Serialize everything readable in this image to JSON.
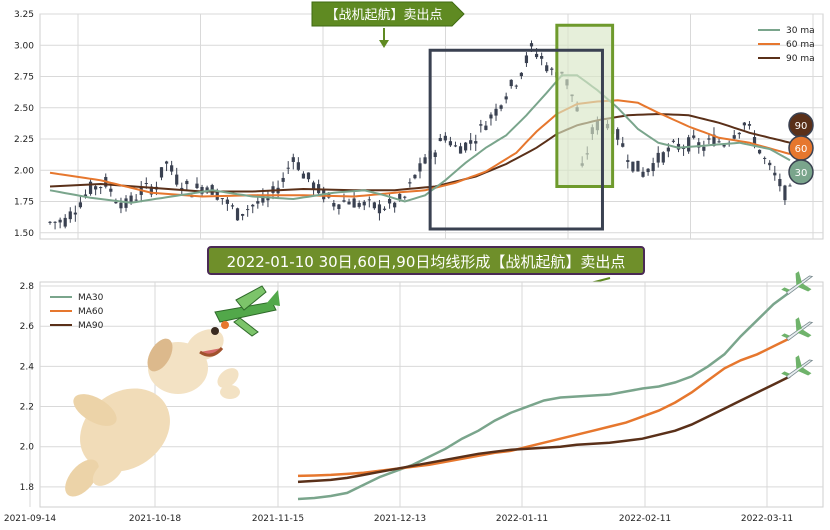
{
  "colors": {
    "ma30": "#7aa58c",
    "ma60": "#e6772e",
    "ma90": "#5a3019",
    "candle": "#3a4151",
    "box_dark": "#3a4151",
    "box_green_fill": "#d8e6c6",
    "box_green_stroke": "#6e9a2c",
    "banner_green": "#5f8a22",
    "banner_dark": "#4a2a55",
    "banner_purple_fill": "#6f8f2a",
    "grid": "#d9d9d9"
  },
  "top_banner": {
    "label": "【战机起航】卖出点"
  },
  "bottom_banner": {
    "label": "2022-01-10 30日,60日,90日均线形成【战机起航】卖出点"
  },
  "badges": {
    "b90": "90",
    "b60": "60",
    "b30": "30"
  },
  "icons": [
    "airplane-icon",
    "dog-icon"
  ],
  "chart_data": [
    {
      "type": "candlestick",
      "title": "",
      "ylim": [
        1.45,
        3.25
      ],
      "yticks": [
        "3.25",
        "3.00",
        "2.75",
        "2.50",
        "2.25",
        "2.00",
        "1.75",
        "1.50"
      ],
      "ytick_values": [
        3.25,
        3.0,
        2.75,
        2.5,
        2.25,
        2.0,
        1.75,
        1.5
      ],
      "legend": {
        "placement": "top-right",
        "entries": [
          "30 ma",
          "60 ma",
          "90 ma"
        ]
      },
      "grid": true,
      "n_days": 126,
      "close_anchors": [
        [
          0,
          1.58
        ],
        [
          3,
          1.6
        ],
        [
          5,
          1.7
        ],
        [
          8,
          1.85
        ],
        [
          11,
          1.9
        ],
        [
          13,
          1.78
        ],
        [
          15,
          1.72
        ],
        [
          18,
          1.83
        ],
        [
          21,
          1.88
        ],
        [
          23,
          2.06
        ],
        [
          25,
          1.93
        ],
        [
          28,
          1.84
        ],
        [
          31,
          1.88
        ],
        [
          34,
          1.78
        ],
        [
          37,
          1.65
        ],
        [
          40,
          1.72
        ],
        [
          43,
          1.76
        ],
        [
          46,
          1.92
        ],
        [
          48,
          2.12
        ],
        [
          50,
          1.97
        ],
        [
          53,
          1.84
        ],
        [
          56,
          1.74
        ],
        [
          59,
          1.76
        ],
        [
          62,
          1.72
        ],
        [
          65,
          1.7
        ],
        [
          68,
          1.73
        ],
        [
          70,
          1.78
        ],
        [
          72,
          1.95
        ],
        [
          74,
          2.06
        ],
        [
          76,
          2.16
        ],
        [
          78,
          2.28
        ],
        [
          80,
          2.18
        ],
        [
          83,
          2.22
        ],
        [
          86,
          2.38
        ],
        [
          88,
          2.48
        ],
        [
          90,
          2.62
        ],
        [
          92,
          2.72
        ],
        [
          94,
          2.88
        ],
        [
          95,
          2.97
        ],
        [
          97,
          2.9
        ],
        [
          99,
          2.78
        ],
        [
          101,
          2.8
        ],
        [
          103,
          2.6
        ],
        [
          104,
          2.48
        ],
        [
          105,
          2.0
        ],
        [
          107,
          2.3
        ],
        [
          109,
          2.42
        ],
        [
          111,
          2.35
        ],
        [
          113,
          2.2
        ],
        [
          115,
          2.05
        ],
        [
          117,
          1.98
        ],
        [
          119,
          2.05
        ],
        [
          121,
          2.12
        ],
        [
          123,
          2.18
        ],
        [
          125,
          2.2
        ],
        [
          127,
          2.22
        ],
        [
          129,
          2.18
        ],
        [
          131,
          2.25
        ],
        [
          133,
          2.22
        ],
        [
          135,
          2.3
        ],
        [
          137,
          2.38
        ],
        [
          139,
          2.25
        ],
        [
          141,
          2.08
        ],
        [
          143,
          1.95
        ],
        [
          145,
          1.82
        ]
      ],
      "ma30_anchors": [
        [
          0,
          1.84
        ],
        [
          8,
          1.78
        ],
        [
          16,
          1.74
        ],
        [
          24,
          1.79
        ],
        [
          32,
          1.84
        ],
        [
          40,
          1.79
        ],
        [
          48,
          1.77
        ],
        [
          56,
          1.82
        ],
        [
          62,
          1.84
        ],
        [
          66,
          1.8
        ],
        [
          70,
          1.75
        ],
        [
          74,
          1.8
        ],
        [
          78,
          1.92
        ],
        [
          82,
          2.06
        ],
        [
          86,
          2.18
        ],
        [
          90,
          2.28
        ],
        [
          94,
          2.44
        ],
        [
          98,
          2.62
        ],
        [
          101,
          2.76
        ],
        [
          104,
          2.76
        ],
        [
          108,
          2.64
        ],
        [
          112,
          2.5
        ],
        [
          116,
          2.33
        ],
        [
          120,
          2.22
        ],
        [
          124,
          2.18
        ],
        [
          130,
          2.2
        ],
        [
          136,
          2.22
        ],
        [
          142,
          2.17
        ],
        [
          146,
          2.08
        ]
      ],
      "ma60_anchors": [
        [
          0,
          1.98
        ],
        [
          10,
          1.92
        ],
        [
          20,
          1.82
        ],
        [
          30,
          1.79
        ],
        [
          40,
          1.8
        ],
        [
          50,
          1.8
        ],
        [
          60,
          1.79
        ],
        [
          68,
          1.82
        ],
        [
          74,
          1.84
        ],
        [
          80,
          1.9
        ],
        [
          86,
          1.99
        ],
        [
          92,
          2.14
        ],
        [
          96,
          2.31
        ],
        [
          100,
          2.45
        ],
        [
          104,
          2.53
        ],
        [
          108,
          2.55
        ],
        [
          112,
          2.56
        ],
        [
          116,
          2.54
        ],
        [
          120,
          2.46
        ],
        [
          126,
          2.35
        ],
        [
          132,
          2.26
        ],
        [
          138,
          2.22
        ],
        [
          146,
          2.13
        ]
      ],
      "ma90_anchors": [
        [
          0,
          1.87
        ],
        [
          10,
          1.89
        ],
        [
          20,
          1.86
        ],
        [
          30,
          1.83
        ],
        [
          40,
          1.83
        ],
        [
          50,
          1.85
        ],
        [
          60,
          1.84
        ],
        [
          68,
          1.84
        ],
        [
          76,
          1.87
        ],
        [
          84,
          1.95
        ],
        [
          90,
          2.05
        ],
        [
          96,
          2.18
        ],
        [
          100,
          2.29
        ],
        [
          104,
          2.36
        ],
        [
          108,
          2.4
        ],
        [
          114,
          2.44
        ],
        [
          120,
          2.45
        ],
        [
          126,
          2.44
        ],
        [
          132,
          2.38
        ],
        [
          138,
          2.3
        ],
        [
          146,
          2.22
        ]
      ],
      "annotation_box_dark": {
        "x_start": 75,
        "x_end": 109,
        "y_low": 1.53,
        "y_high": 2.96
      },
      "annotation_box_green": {
        "x_start": 100,
        "x_end": 111,
        "y_low": 1.87,
        "y_high": 3.16
      }
    },
    {
      "type": "line",
      "title": "",
      "ylim": [
        1.7,
        2.82
      ],
      "yticks": [
        "2.8",
        "2.6",
        "2.4",
        "2.2",
        "2.0",
        "1.8"
      ],
      "ytick_values": [
        2.8,
        2.6,
        2.4,
        2.2,
        2.0,
        1.8
      ],
      "xticks": [
        "2021-09-14",
        "2021-10-18",
        "2021-11-15",
        "2021-12-13",
        "2022-01-11",
        "2022-02-11",
        "2022-03-11"
      ],
      "legend": {
        "placement": "top-left",
        "entries": [
          "MA30",
          "MA60",
          "MA90"
        ]
      },
      "grid": true,
      "series": [
        {
          "name": "MA30",
          "x": [
            0,
            2,
            4,
            6,
            8,
            10,
            12,
            14,
            16,
            18,
            20,
            22,
            24,
            26,
            28,
            30,
            32,
            34,
            36,
            38,
            40,
            42,
            44,
            46,
            48,
            50,
            52,
            54,
            56,
            58,
            60
          ],
          "values": [
            1.74,
            1.745,
            1.755,
            1.77,
            1.81,
            1.85,
            1.88,
            1.91,
            1.95,
            1.99,
            2.04,
            2.08,
            2.13,
            2.17,
            2.2,
            2.23,
            2.245,
            2.25,
            2.255,
            2.26,
            2.275,
            2.29,
            2.3,
            2.32,
            2.35,
            2.4,
            2.46,
            2.55,
            2.63,
            2.71,
            2.77
          ]
        },
        {
          "name": "MA60",
          "x": [
            0,
            2,
            4,
            6,
            8,
            10,
            12,
            14,
            16,
            18,
            20,
            22,
            24,
            26,
            28,
            30,
            32,
            34,
            36,
            38,
            40,
            42,
            44,
            46,
            48,
            50,
            52,
            54,
            56,
            58,
            60
          ],
          "values": [
            1.855,
            1.857,
            1.86,
            1.865,
            1.87,
            1.88,
            1.89,
            1.9,
            1.91,
            1.925,
            1.94,
            1.955,
            1.97,
            1.98,
            2.0,
            2.02,
            2.04,
            2.06,
            2.08,
            2.1,
            2.12,
            2.15,
            2.18,
            2.22,
            2.27,
            2.33,
            2.39,
            2.43,
            2.46,
            2.5,
            2.54
          ]
        },
        {
          "name": "MA90",
          "x": [
            0,
            2,
            4,
            6,
            8,
            10,
            12,
            14,
            16,
            18,
            20,
            22,
            24,
            26,
            28,
            30,
            32,
            34,
            36,
            38,
            40,
            42,
            44,
            46,
            48,
            50,
            52,
            54,
            56,
            58,
            60
          ],
          "values": [
            1.825,
            1.83,
            1.835,
            1.845,
            1.86,
            1.875,
            1.89,
            1.905,
            1.92,
            1.935,
            1.95,
            1.965,
            1.975,
            1.985,
            1.99,
            1.995,
            2.0,
            2.01,
            2.015,
            2.02,
            2.03,
            2.04,
            2.06,
            2.08,
            2.11,
            2.15,
            2.19,
            2.23,
            2.27,
            2.31,
            2.35
          ]
        }
      ]
    }
  ]
}
